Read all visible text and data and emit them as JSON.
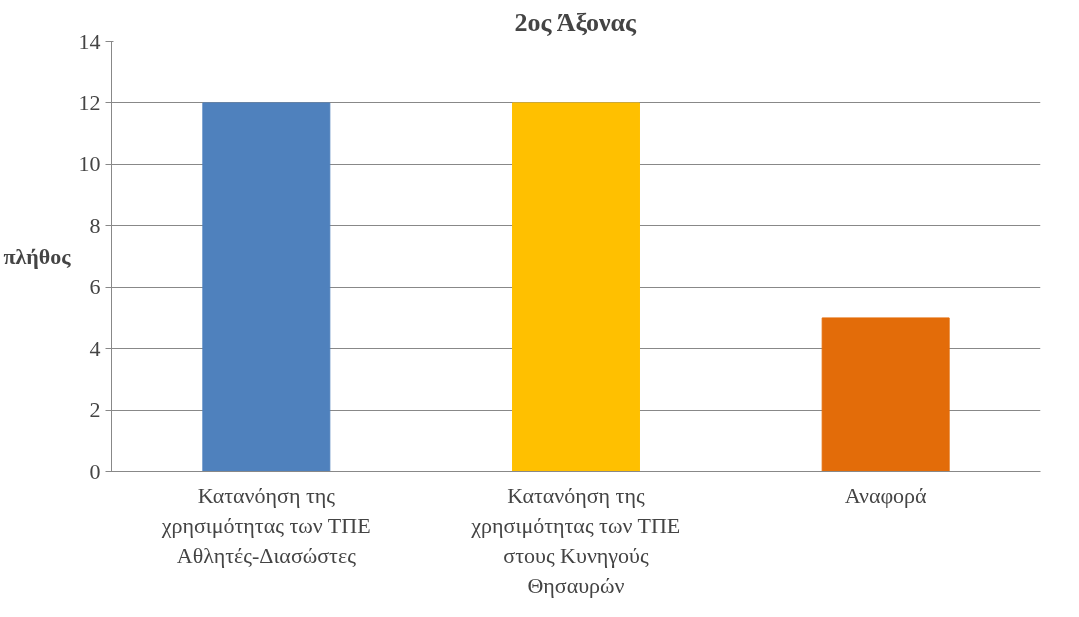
{
  "chart_data": {
    "type": "bar",
    "title": "2ος Άξονας",
    "ylabel": "πλήθος",
    "categories": [
      "Κατανόηση της χρησιμότητας των ΤΠΕ Αθλητές-Διασώστες",
      "Κατανόηση της χρησιμότητας των ΤΠΕ στους Κυνηγούς Θησαυρών",
      "Αναφορά"
    ],
    "values": [
      12,
      12,
      5
    ],
    "colors": [
      "#4f81bd",
      "#ffc000",
      "#e36c09"
    ],
    "ylim": [
      0,
      14
    ],
    "yticks": [
      0,
      2,
      4,
      6,
      8,
      10,
      12,
      14
    ],
    "grid": "y"
  }
}
